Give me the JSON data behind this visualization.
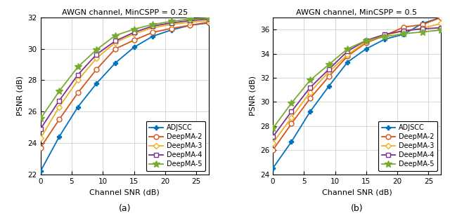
{
  "snr": [
    0,
    3,
    6,
    9,
    12,
    15,
    18,
    21,
    24,
    27
  ],
  "plot_a": {
    "title": "AWGN channel, MinCSPP = 0.25",
    "xlabel": "Channel SNR (dB)",
    "ylabel": "PSNR (dB)",
    "xlim": [
      0,
      27
    ],
    "ylim": [
      22,
      32
    ],
    "yticks": [
      22,
      24,
      26,
      28,
      30,
      32
    ],
    "xticks": [
      0,
      5,
      10,
      15,
      20,
      25
    ],
    "series": {
      "ADJSCC": [
        22.2,
        24.4,
        26.3,
        27.8,
        29.1,
        30.1,
        30.8,
        31.2,
        31.5,
        31.65
      ],
      "DeepMA-2": [
        23.7,
        25.5,
        27.2,
        28.7,
        30.0,
        30.55,
        31.05,
        31.3,
        31.5,
        31.7
      ],
      "DeepMA-3": [
        24.3,
        26.3,
        28.0,
        29.4,
        30.4,
        30.95,
        31.35,
        31.55,
        31.7,
        31.8
      ],
      "DeepMA-4": [
        24.9,
        26.7,
        28.35,
        29.65,
        30.5,
        31.05,
        31.45,
        31.65,
        31.8,
        31.9
      ],
      "DeepMA-5": [
        25.55,
        27.3,
        28.85,
        29.95,
        30.85,
        31.25,
        31.55,
        31.75,
        31.9,
        31.95
      ]
    }
  },
  "plot_b": {
    "title": "AWGN channel, MinCSPP = 0.5",
    "xlabel": "Channel SNR (dB)",
    "ylabel": "PSNR (dB)",
    "xlim": [
      0,
      27
    ],
    "ylim": [
      24,
      37
    ],
    "yticks": [
      24,
      26,
      28,
      30,
      32,
      34,
      36
    ],
    "xticks": [
      0,
      5,
      10,
      15,
      20,
      25
    ],
    "series": {
      "ADJSCC": [
        24.5,
        26.7,
        29.2,
        31.3,
        33.3,
        34.4,
        35.2,
        35.6,
        36.5,
        37.0
      ],
      "DeepMA-2": [
        26.0,
        28.2,
        30.3,
        32.1,
        33.8,
        34.9,
        35.5,
        36.2,
        36.4,
        37.0
      ],
      "DeepMA-3": [
        26.6,
        28.7,
        30.8,
        32.5,
        33.9,
        35.0,
        35.5,
        35.9,
        36.1,
        36.5
      ],
      "DeepMA-4": [
        27.1,
        29.2,
        31.2,
        32.7,
        34.2,
        35.1,
        35.6,
        35.9,
        36.05,
        36.15
      ],
      "DeepMA-5": [
        27.8,
        29.9,
        31.8,
        33.1,
        34.4,
        35.1,
        35.4,
        35.65,
        35.8,
        35.95
      ]
    }
  },
  "colors": {
    "ADJSCC": "#0072BD",
    "DeepMA-2": "#D95319",
    "DeepMA-3": "#EDB120",
    "DeepMA-4": "#7E2F8E",
    "DeepMA-5": "#77AC30"
  },
  "markers": {
    "ADJSCC": "P",
    "DeepMA-2": "o",
    "DeepMA-3": "D",
    "DeepMA-4": "s",
    "DeepMA-5": "*"
  },
  "markersizes": {
    "ADJSCC": 5,
    "DeepMA-2": 5,
    "DeepMA-3": 4,
    "DeepMA-4": 5,
    "DeepMA-5": 7
  },
  "linewidth": 1.3
}
